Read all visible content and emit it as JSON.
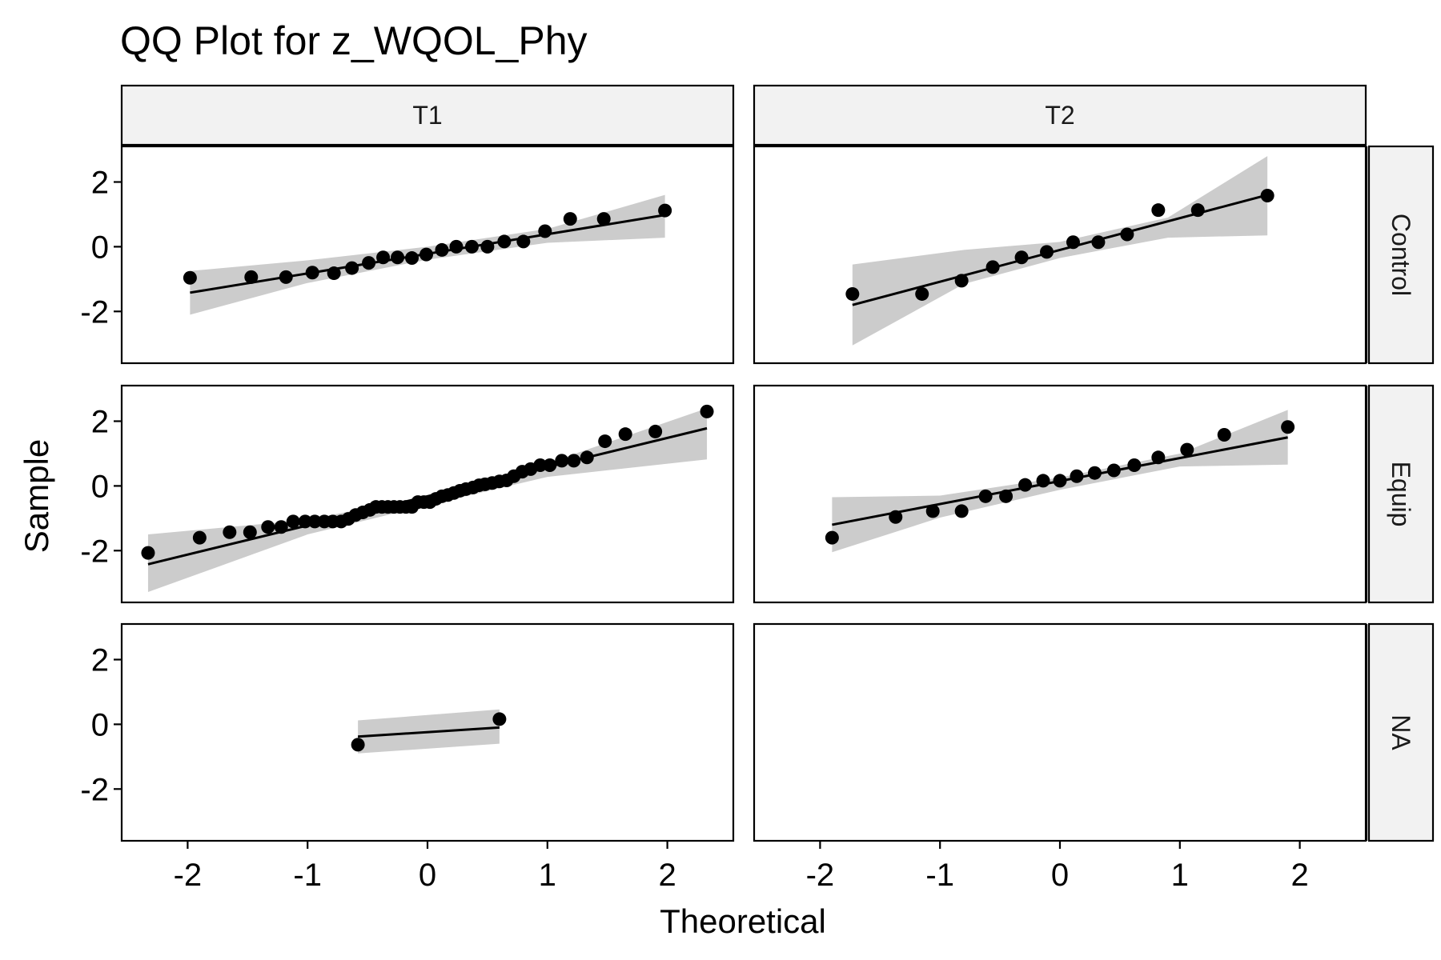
{
  "chart_data": {
    "type": "scatter",
    "title": "QQ Plot for z_WQOL_Phy",
    "xlabel": "Theoretical",
    "ylabel": "Sample",
    "facet_columns": [
      "T1",
      "T2"
    ],
    "facet_rows": [
      "Control",
      "Equip",
      "NA"
    ],
    "x_ticks": [
      -2,
      -1,
      0,
      1,
      2
    ],
    "y_ticks": [
      -2,
      0,
      2
    ],
    "x_tick_labels": [
      "-2",
      "-1",
      "0",
      "1",
      "2"
    ],
    "y_tick_labels": [
      "-2",
      "0",
      "2"
    ],
    "xlim": [
      -2.55,
      2.55
    ],
    "ylim": [
      -3.6,
      3.1
    ],
    "grid": false,
    "colors": {
      "points": "#000000",
      "line": "#000000",
      "band": "#cccccc",
      "strip": "#f2f2f2"
    },
    "panels": [
      {
        "col": "T1",
        "row": "Control",
        "points": [
          [
            -1.98,
            -0.96
          ],
          [
            -1.47,
            -0.94
          ],
          [
            -1.18,
            -0.94
          ],
          [
            -0.96,
            -0.8
          ],
          [
            -0.78,
            -0.82
          ],
          [
            -0.63,
            -0.66
          ],
          [
            -0.49,
            -0.5
          ],
          [
            -0.37,
            -0.33
          ],
          [
            -0.25,
            -0.33
          ],
          [
            -0.13,
            -0.35
          ],
          [
            -0.01,
            -0.24
          ],
          [
            0.12,
            -0.1
          ],
          [
            0.24,
            0.0
          ],
          [
            0.37,
            0.0
          ],
          [
            0.5,
            0.0
          ],
          [
            0.64,
            0.16
          ],
          [
            0.8,
            0.16
          ],
          [
            0.98,
            0.48
          ],
          [
            1.19,
            0.86
          ],
          [
            1.47,
            0.86
          ],
          [
            1.98,
            1.12
          ]
        ],
        "line": [
          [
            -1.98,
            -1.42
          ],
          [
            1.98,
            0.98
          ]
        ],
        "band_upper": [
          [
            -1.98,
            -0.75
          ],
          [
            -1.0,
            -0.42
          ],
          [
            0.0,
            0.0
          ],
          [
            1.0,
            0.55
          ],
          [
            1.98,
            1.6
          ]
        ],
        "band_lower": [
          [
            -1.98,
            -2.1
          ],
          [
            -1.0,
            -1.12
          ],
          [
            0.0,
            -0.4
          ],
          [
            1.0,
            0.12
          ],
          [
            1.98,
            0.28
          ]
        ]
      },
      {
        "col": "T2",
        "row": "Control",
        "points": [
          [
            -1.73,
            -1.46
          ],
          [
            -1.15,
            -1.46
          ],
          [
            -0.82,
            -1.05
          ],
          [
            -0.56,
            -0.63
          ],
          [
            -0.32,
            -0.33
          ],
          [
            -0.11,
            -0.16
          ],
          [
            0.11,
            0.14
          ],
          [
            0.32,
            0.14
          ],
          [
            0.56,
            0.38
          ],
          [
            0.82,
            1.13
          ],
          [
            1.15,
            1.13
          ],
          [
            1.73,
            1.58
          ]
        ],
        "line": [
          [
            -1.73,
            -1.8
          ],
          [
            1.73,
            1.6
          ]
        ],
        "band_upper": [
          [
            -1.73,
            -0.55
          ],
          [
            -0.8,
            -0.1
          ],
          [
            0.0,
            0.15
          ],
          [
            0.9,
            0.9
          ],
          [
            1.73,
            2.8
          ]
        ],
        "band_lower": [
          [
            -1.73,
            -3.05
          ],
          [
            -0.8,
            -1.15
          ],
          [
            0.0,
            -0.35
          ],
          [
            0.9,
            0.28
          ],
          [
            1.73,
            0.35
          ]
        ]
      },
      {
        "col": "T1",
        "row": "Equip",
        "points": [
          [
            -2.33,
            -2.07
          ],
          [
            -1.9,
            -1.6
          ],
          [
            -1.65,
            -1.43
          ],
          [
            -1.48,
            -1.43
          ],
          [
            -1.33,
            -1.27
          ],
          [
            -1.22,
            -1.27
          ],
          [
            -1.12,
            -1.1
          ],
          [
            -1.02,
            -1.1
          ],
          [
            -0.94,
            -1.1
          ],
          [
            -0.86,
            -1.1
          ],
          [
            -0.79,
            -1.1
          ],
          [
            -0.72,
            -1.1
          ],
          [
            -0.66,
            -1.02
          ],
          [
            -0.6,
            -0.9
          ],
          [
            -0.54,
            -0.82
          ],
          [
            -0.48,
            -0.74
          ],
          [
            -0.43,
            -0.65
          ],
          [
            -0.38,
            -0.65
          ],
          [
            -0.33,
            -0.65
          ],
          [
            -0.28,
            -0.65
          ],
          [
            -0.23,
            -0.65
          ],
          [
            -0.18,
            -0.65
          ],
          [
            -0.13,
            -0.65
          ],
          [
            -0.08,
            -0.5
          ],
          [
            -0.03,
            -0.5
          ],
          [
            0.02,
            -0.5
          ],
          [
            0.07,
            -0.4
          ],
          [
            0.12,
            -0.32
          ],
          [
            0.17,
            -0.28
          ],
          [
            0.22,
            -0.22
          ],
          [
            0.27,
            -0.15
          ],
          [
            0.32,
            -0.1
          ],
          [
            0.38,
            -0.05
          ],
          [
            0.43,
            0.02
          ],
          [
            0.48,
            0.05
          ],
          [
            0.54,
            0.09
          ],
          [
            0.6,
            0.14
          ],
          [
            0.66,
            0.17
          ],
          [
            0.72,
            0.3
          ],
          [
            0.79,
            0.44
          ],
          [
            0.86,
            0.52
          ],
          [
            0.94,
            0.64
          ],
          [
            1.02,
            0.64
          ],
          [
            1.12,
            0.78
          ],
          [
            1.22,
            0.78
          ],
          [
            1.33,
            0.88
          ],
          [
            1.48,
            1.38
          ],
          [
            1.65,
            1.6
          ],
          [
            1.9,
            1.68
          ],
          [
            2.33,
            2.3
          ]
        ],
        "line": [
          [
            -2.33,
            -2.42
          ],
          [
            2.33,
            1.78
          ]
        ],
        "band_upper": [
          [
            -2.33,
            -1.5
          ],
          [
            -1.0,
            -1.05
          ],
          [
            0.0,
            -0.3
          ],
          [
            1.0,
            0.7
          ],
          [
            2.33,
            2.4
          ]
        ],
        "band_lower": [
          [
            -2.33,
            -3.28
          ],
          [
            -1.0,
            -1.5
          ],
          [
            0.0,
            -0.6
          ],
          [
            1.0,
            0.28
          ],
          [
            2.33,
            0.82
          ]
        ]
      },
      {
        "col": "T2",
        "row": "Equip",
        "points": [
          [
            -1.9,
            -1.6
          ],
          [
            -1.37,
            -0.96
          ],
          [
            -1.06,
            -0.78
          ],
          [
            -0.82,
            -0.78
          ],
          [
            -0.62,
            -0.32
          ],
          [
            -0.45,
            -0.32
          ],
          [
            -0.29,
            0.03
          ],
          [
            -0.14,
            0.16
          ],
          [
            0.0,
            0.16
          ],
          [
            0.14,
            0.3
          ],
          [
            0.29,
            0.4
          ],
          [
            0.45,
            0.48
          ],
          [
            0.62,
            0.64
          ],
          [
            0.82,
            0.88
          ],
          [
            1.06,
            1.12
          ],
          [
            1.37,
            1.58
          ],
          [
            1.9,
            1.82
          ]
        ],
        "line": [
          [
            -1.9,
            -1.2
          ],
          [
            1.9,
            1.5
          ]
        ],
        "band_upper": [
          [
            -1.9,
            -0.35
          ],
          [
            -1.0,
            -0.3
          ],
          [
            0.0,
            0.26
          ],
          [
            1.0,
            1.0
          ],
          [
            1.9,
            2.35
          ]
        ],
        "band_lower": [
          [
            -1.9,
            -2.05
          ],
          [
            -1.0,
            -0.98
          ],
          [
            0.0,
            -0.12
          ],
          [
            1.0,
            0.6
          ],
          [
            1.9,
            0.66
          ]
        ]
      },
      {
        "col": "T1",
        "row": "NA",
        "points": [
          [
            -0.58,
            -0.63
          ],
          [
            0.6,
            0.16
          ]
        ],
        "line": [
          [
            -0.58,
            -0.38
          ],
          [
            0.6,
            -0.1
          ]
        ],
        "band_upper": [
          [
            -0.58,
            0.12
          ],
          [
            0.6,
            0.46
          ]
        ],
        "band_lower": [
          [
            -0.58,
            -0.9
          ],
          [
            0.6,
            -0.6
          ]
        ]
      },
      {
        "col": "T2",
        "row": "NA",
        "points": [],
        "line": [],
        "band_upper": [],
        "band_lower": []
      }
    ]
  }
}
